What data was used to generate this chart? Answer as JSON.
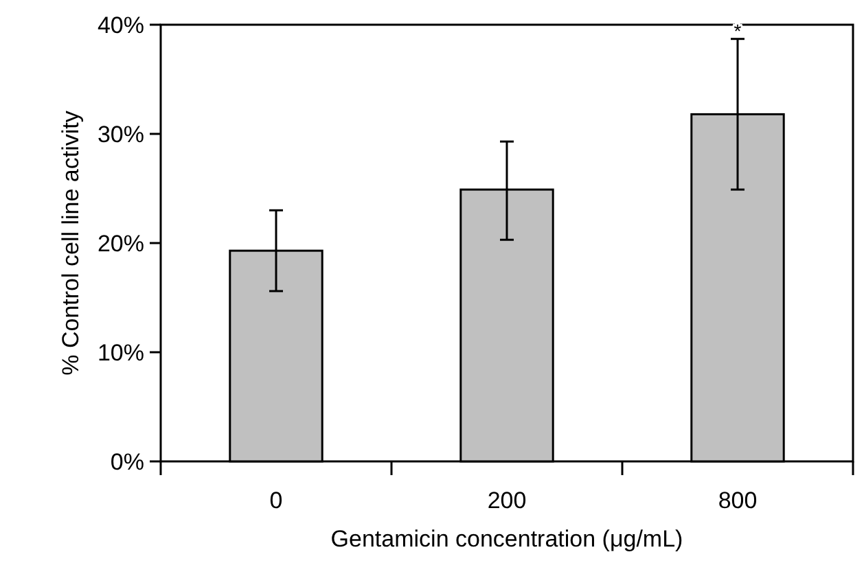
{
  "chart_data": {
    "type": "bar",
    "xlabel": "Gentamicin concentration (μg/mL)",
    "ylabel": "% Control cell line activity",
    "categories": [
      "0",
      "200",
      "800"
    ],
    "values": [
      19.3,
      24.9,
      31.8
    ],
    "errors": [
      [
        15.6,
        23.0
      ],
      [
        20.3,
        29.3
      ],
      [
        24.9,
        38.7
      ]
    ],
    "color": "#c0c0c0",
    "ylim": [
      0,
      40
    ],
    "yticks": [
      {
        "value": 0,
        "label": "0%"
      },
      {
        "value": 10,
        "label": "10%"
      },
      {
        "value": 20,
        "label": "20%"
      },
      {
        "value": 30,
        "label": "30%"
      },
      {
        "value": 40,
        "label": "40%"
      }
    ],
    "annotations": [
      {
        "text": "*",
        "x": "800",
        "y": 38.7
      }
    ],
    "grid": false
  }
}
